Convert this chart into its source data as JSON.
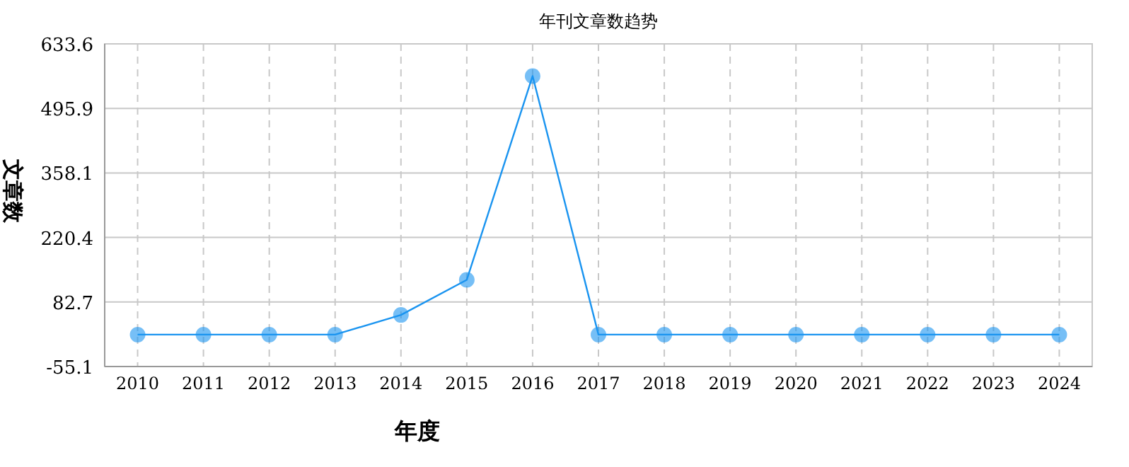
{
  "chart_data": {
    "type": "line",
    "title": "年刊文章数趋势",
    "xlabel": "年度",
    "ylabel": "文章数",
    "categories": [
      "2010",
      "2011",
      "2012",
      "2013",
      "2014",
      "2015",
      "2016",
      "2017",
      "2018",
      "2019",
      "2020",
      "2021",
      "2022",
      "2023",
      "2024"
    ],
    "values": [
      13,
      13,
      13,
      13,
      55,
      130,
      565,
      13,
      13,
      13,
      13,
      13,
      13,
      13,
      13
    ],
    "color": "#1a94f0",
    "marker": "circle",
    "grid": true,
    "ylim": [
      -55.1,
      633.6
    ],
    "yticks": [
      -55.1,
      82.7,
      220.4,
      358.1,
      495.9,
      633.6
    ]
  }
}
